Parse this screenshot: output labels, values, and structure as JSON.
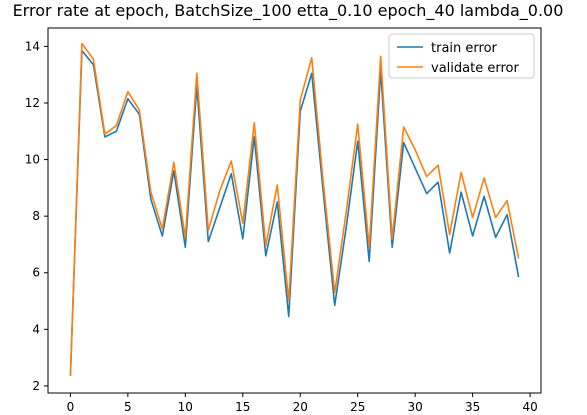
{
  "chart_data": {
    "type": "line",
    "title": "Error rate at epoch, BatchSize_100  etta_0.10 epoch_40 lambda_0.00",
    "xlabel": "",
    "ylabel": "",
    "xlim": [
      -1.95,
      40.95
    ],
    "ylim": [
      1.75,
      14.65
    ],
    "x_ticks": [
      0,
      5,
      10,
      15,
      20,
      25,
      30,
      35,
      40
    ],
    "y_ticks": [
      2,
      4,
      6,
      8,
      10,
      12,
      14
    ],
    "grid": false,
    "legend": "top-right",
    "x": [
      0,
      1,
      2,
      3,
      4,
      5,
      6,
      7,
      8,
      9,
      10,
      11,
      12,
      13,
      14,
      15,
      16,
      17,
      18,
      19,
      20,
      21,
      22,
      23,
      24,
      25,
      26,
      27,
      28,
      29,
      30,
      31,
      32,
      33,
      34,
      35,
      36,
      37,
      38,
      39
    ],
    "series": [
      {
        "name": "train error",
        "color": "#1f77b4",
        "values": [
          2.35,
          13.85,
          13.35,
          10.8,
          11.0,
          12.15,
          11.6,
          8.6,
          7.3,
          9.6,
          6.9,
          12.6,
          7.1,
          8.3,
          9.5,
          7.2,
          10.8,
          6.6,
          8.5,
          4.45,
          11.7,
          13.05,
          8.85,
          4.85,
          7.6,
          10.65,
          6.4,
          13.15,
          6.9,
          10.6,
          9.7,
          8.8,
          9.2,
          6.7,
          8.85,
          7.3,
          8.7,
          7.25,
          8.05,
          5.85
        ]
      },
      {
        "name": "validate error",
        "color": "#ff7f0e",
        "values": [
          2.35,
          14.1,
          13.55,
          10.9,
          11.2,
          12.4,
          11.75,
          8.85,
          7.55,
          9.9,
          7.25,
          13.05,
          7.5,
          8.9,
          9.95,
          7.75,
          11.3,
          6.95,
          9.1,
          5.0,
          12.1,
          13.6,
          9.2,
          5.3,
          8.15,
          11.25,
          6.9,
          13.65,
          7.2,
          11.15,
          10.35,
          9.4,
          9.8,
          7.35,
          9.55,
          7.95,
          9.35,
          7.95,
          8.55,
          6.5
        ]
      }
    ]
  }
}
